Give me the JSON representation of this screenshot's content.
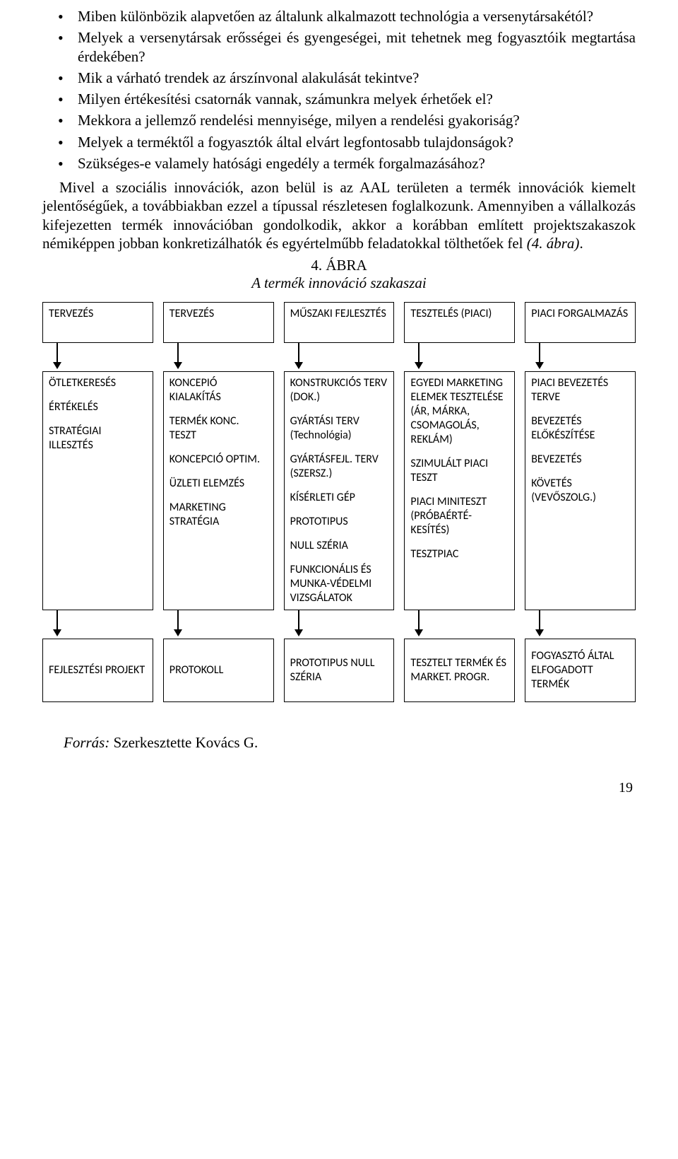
{
  "bullets": [
    "Miben különbözik alapvetően az általunk alkalmazott technológia a versenytársakétól?",
    "Melyek a versenytársak erősségei és gyengeségei, mit tehetnek meg fogyasztóik megtartása érdekében?",
    "Mik a várható trendek az árszínvonal alakulását tekintve?",
    "Milyen értékesítési csatornák vannak, számunkra melyek érhetőek el?",
    "Mekkora a jellemző rendelési mennyisége, milyen a rendelési gyakoriság?",
    "Melyek a terméktől a fogyasztók által elvárt legfontosabb tulajdonságok?",
    "Szükséges-e valamely hatósági engedély a termék forgalmazásához?"
  ],
  "paragraph": "Mivel a szociális innovációk, azon belül is az AAL területen a termék innovációk kiemelt jelentőségűek, a továbbiakban ezzel a típussal részletesen foglalkozunk. Amennyiben a vállalkozás kifejezetten termék innovációban gondolkodik, akkor a korábban említett projektszakaszok némiképpen jobban konkretizálhatók és egyértelműbb feladatokkal tölthetőek fel ",
  "paragraph_ref": "(4. ábra)",
  "paragraph_tail": ".",
  "figure_num": "4. ÁBRA",
  "figure_title": "A termék innováció szakaszai",
  "diagram": {
    "columns": [
      {
        "head": "TERVEZÉS",
        "body": [
          "ÖTLETKERESÉS",
          "ÉRTÉKELÉS",
          "STRATÉGIAI ILLESZTÉS"
        ],
        "foot": "FEJLESZTÉSI PROJEKT"
      },
      {
        "head": "TERVEZÉS",
        "body": [
          "KONCEPIÓ KIALAKÍTÁS",
          "TERMÉK KONC. TESZT",
          "KONCEPCIÓ OPTIM.",
          "ÜZLETI ELEMZÉS",
          "MARKETING STRATÉGIA"
        ],
        "foot": "PROTOKOLL"
      },
      {
        "head": "MŰSZAKI FEJLESZTÉS",
        "body": [
          "KONSTRUKCIÓS TERV (DOK.)",
          "GYÁRTÁSI TERV (Technológia)",
          "GYÁRTÁSFEJL. TERV (SZERSZ.)",
          "KÍSÉRLETI GÉP",
          "PROTOTIPUS",
          "NULL SZÉRIA",
          "FUNKCIONÁLIS ÉS MUNKA-VÉDELMI VIZSGÁLATOK"
        ],
        "foot": "PROTOTIPUS NULL SZÉRIA"
      },
      {
        "head": "TESZTELÉS (PIACI)",
        "body": [
          "EGYEDI MARKETING ELEMEK TESZTELÉSE (ÁR, MÁRKA, CSOMAGOLÁS, REKLÁM)",
          "SZIMULÁLT PIACI TESZT",
          "PIACI MINITESZT (PRÓBAÉRTÉ-KESÍTÉS)",
          "TESZTPIAC"
        ],
        "foot": "TESZTELT TERMÉK ÉS MARKET. PROGR."
      },
      {
        "head": "PIACI FORGALMAZÁS",
        "body": [
          "PIACI BEVEZETÉS TERVE",
          "BEVEZETÉS ELŐKÉSZÍTÉSE",
          "BEVEZETÉS",
          "KÖVETÉS (VEVŐSZOLG.)"
        ],
        "foot": "FOGYASZTÓ ÁLTAL ELFOGADOTT TERMÉK"
      }
    ]
  },
  "source_label": "Forrás:",
  "source_text": " Szerkesztette Kovács G.",
  "page_number": "19"
}
